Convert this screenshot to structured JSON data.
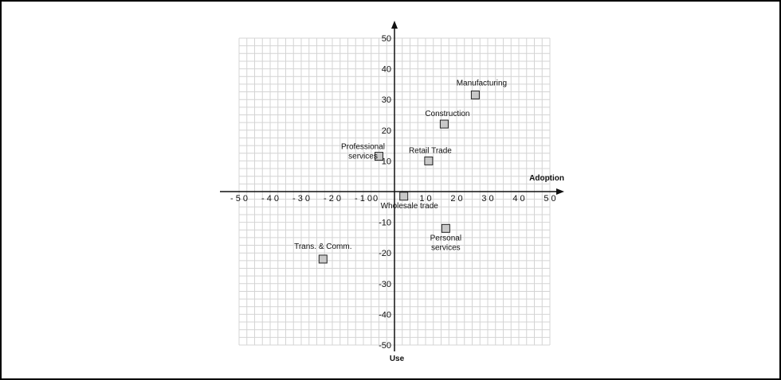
{
  "chart_data": {
    "type": "scatter",
    "xlabel": "Adoption",
    "ylabel": "Use",
    "xlim": [
      -50,
      50
    ],
    "ylim": [
      -50,
      50
    ],
    "grid": true,
    "x_ticks": [
      "- 5 0",
      "- 4 0",
      "- 3 0",
      "- 2 0",
      "- 1 0",
      "0",
      "1 0",
      "2 0",
      "3 0",
      "4 0",
      "5 0"
    ],
    "x_tick_values": [
      -50,
      -40,
      -30,
      -20,
      -10,
      0,
      10,
      20,
      30,
      40,
      50
    ],
    "y_ticks": [
      "50",
      "40",
      "30",
      "20",
      "10",
      "-10",
      "-20",
      "-30",
      "-40",
      "-50"
    ],
    "y_tick_values": [
      50,
      40,
      30,
      20,
      10,
      -10,
      -20,
      -30,
      -40,
      -50
    ],
    "points": [
      {
        "label": "Manufacturing",
        "x": 26,
        "y": 31.5
      },
      {
        "label": "Construction",
        "x": 16,
        "y": 22
      },
      {
        "label": "Retail Trade",
        "x": 11,
        "y": 10
      },
      {
        "label": "Professional\nservices",
        "x": -5,
        "y": 11.5
      },
      {
        "label": "Wholesale trade",
        "x": 3,
        "y": -1.5
      },
      {
        "label": "Personal\nservices",
        "x": 16.5,
        "y": -12
      },
      {
        "label": "Trans. & Comm.",
        "x": -23,
        "y": -22
      }
    ],
    "colors": {
      "marker_fill": "#c8c8c8",
      "marker_stroke": "#222222",
      "grid": "#d4d4d4",
      "axis": "#111111"
    }
  }
}
